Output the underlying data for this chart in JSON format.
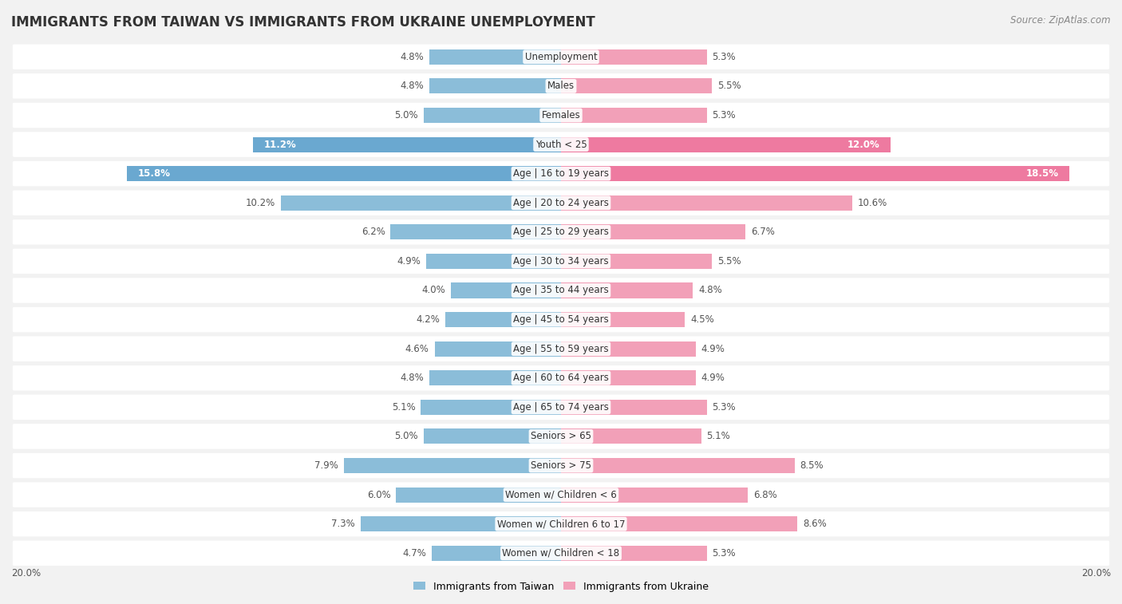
{
  "title": "IMMIGRANTS FROM TAIWAN VS IMMIGRANTS FROM UKRAINE UNEMPLOYMENT",
  "source": "Source: ZipAtlas.com",
  "categories": [
    "Unemployment",
    "Males",
    "Females",
    "Youth < 25",
    "Age | 16 to 19 years",
    "Age | 20 to 24 years",
    "Age | 25 to 29 years",
    "Age | 30 to 34 years",
    "Age | 35 to 44 years",
    "Age | 45 to 54 years",
    "Age | 55 to 59 years",
    "Age | 60 to 64 years",
    "Age | 65 to 74 years",
    "Seniors > 65",
    "Seniors > 75",
    "Women w/ Children < 6",
    "Women w/ Children 6 to 17",
    "Women w/ Children < 18"
  ],
  "taiwan_values": [
    4.8,
    4.8,
    5.0,
    11.2,
    15.8,
    10.2,
    6.2,
    4.9,
    4.0,
    4.2,
    4.6,
    4.8,
    5.1,
    5.0,
    7.9,
    6.0,
    7.3,
    4.7
  ],
  "ukraine_values": [
    5.3,
    5.5,
    5.3,
    12.0,
    18.5,
    10.6,
    6.7,
    5.5,
    4.8,
    4.5,
    4.9,
    4.9,
    5.3,
    5.1,
    8.5,
    6.8,
    8.6,
    5.3
  ],
  "taiwan_color": "#8bbdd9",
  "ukraine_color": "#f2a0b8",
  "taiwan_color_highlight": "#6aa8d0",
  "ukraine_color_highlight": "#ee7aa0",
  "taiwan_label": "Immigrants from Taiwan",
  "ukraine_label": "Immigrants from Ukraine",
  "axis_max": 20.0,
  "background_color": "#f2f2f2",
  "row_bg_color": "#ffffff",
  "row_bg_alt": "#ebebeb",
  "title_fontsize": 12,
  "source_fontsize": 8.5,
  "label_fontsize": 8.5,
  "value_fontsize": 8.5,
  "bar_height": 0.52,
  "highlight_rows": [
    3,
    4
  ],
  "value_text_color": "#555555",
  "highlight_taiwan_text": "#2a6496",
  "highlight_ukraine_text": "#c0306a"
}
